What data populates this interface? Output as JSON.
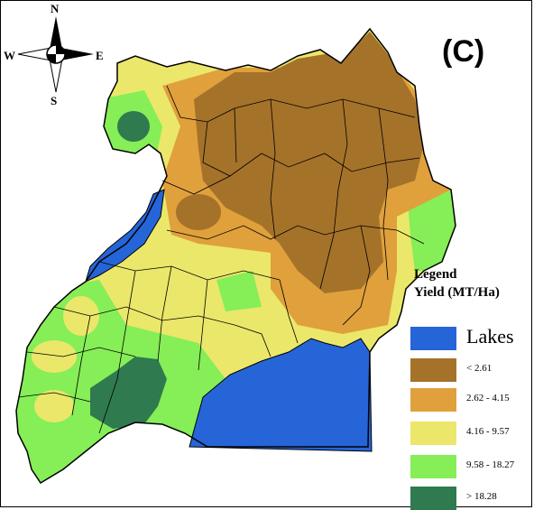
{
  "panel_label": "(C)",
  "compass": {
    "north": "N",
    "south": "S",
    "east": "E",
    "west": "W",
    "icon": "compass-rose-icon"
  },
  "legend": {
    "title_line1": "Legend",
    "title_line2": "Yield (MT/Ha)",
    "items": [
      {
        "label": "Lakes",
        "color": "#2565d8"
      },
      {
        "label": "< 2.61",
        "color": "#a5722a"
      },
      {
        "label": "2.62 - 4.15",
        "color": "#e0a03c"
      },
      {
        "label": "4.16 - 9.57",
        "color": "#ebe76a"
      },
      {
        "label": "9.58 - 18.27",
        "color": "#86ee57"
      },
      {
        "label": "> 18.28",
        "color": "#2f7a4f"
      }
    ]
  },
  "colors": {
    "lake": "#2565d8",
    "class1": "#a5722a",
    "class2": "#e0a03c",
    "class3": "#ebe76a",
    "class4": "#86ee57",
    "class5": "#2f7a4f",
    "border": "#000000"
  }
}
